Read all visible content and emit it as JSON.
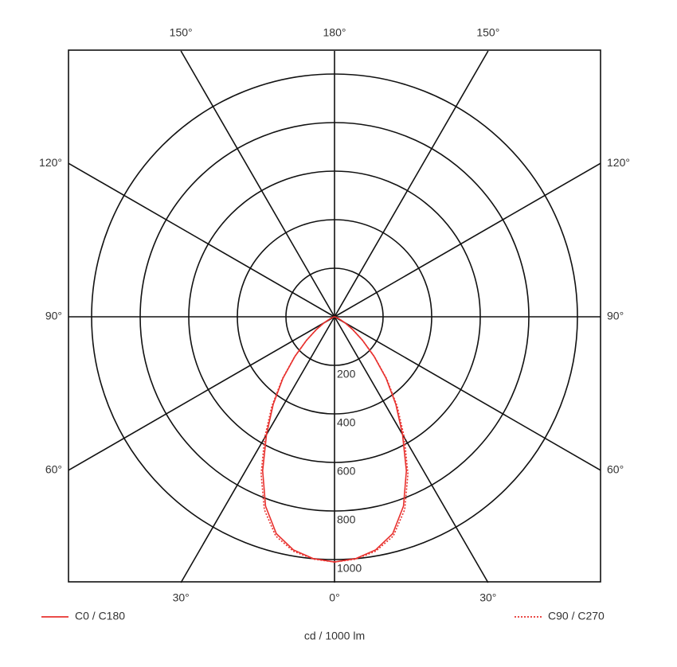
{
  "chart_data": {
    "type": "polar",
    "x_label": "cd / 1000 lm",
    "rlim": [
      0,
      1000
    ],
    "rticks": [
      200,
      400,
      600,
      800,
      1000
    ],
    "angle_ticks": [
      {
        "value": 0,
        "label": "0°"
      },
      {
        "value": 30,
        "label": "30°"
      },
      {
        "value": 60,
        "label": "60°"
      },
      {
        "value": 90,
        "label": "90°"
      },
      {
        "value": 120,
        "label": "120°"
      },
      {
        "value": 150,
        "label": "150°"
      },
      {
        "value": 180,
        "label": "180°"
      }
    ],
    "x": [
      0,
      5,
      10,
      15,
      20,
      25,
      30,
      35,
      40,
      45,
      50,
      55,
      60,
      65,
      70,
      75,
      80,
      85,
      90
    ],
    "series": [
      {
        "name": "C0 / C180",
        "color": "#e8322f",
        "style": "solid",
        "values": [
          1010,
          1000,
          975,
          925,
          830,
          700,
          560,
          440,
          330,
          230,
          150,
          90,
          50,
          22,
          9,
          3,
          1,
          0,
          0
        ]
      },
      {
        "name": "C90 / C270",
        "color": "#e8322f",
        "style": "dotted",
        "values": [
          1010,
          1002,
          980,
          935,
          845,
          715,
          575,
          450,
          335,
          232,
          150,
          90,
          50,
          22,
          9,
          3,
          1,
          0,
          0
        ]
      }
    ]
  }
}
